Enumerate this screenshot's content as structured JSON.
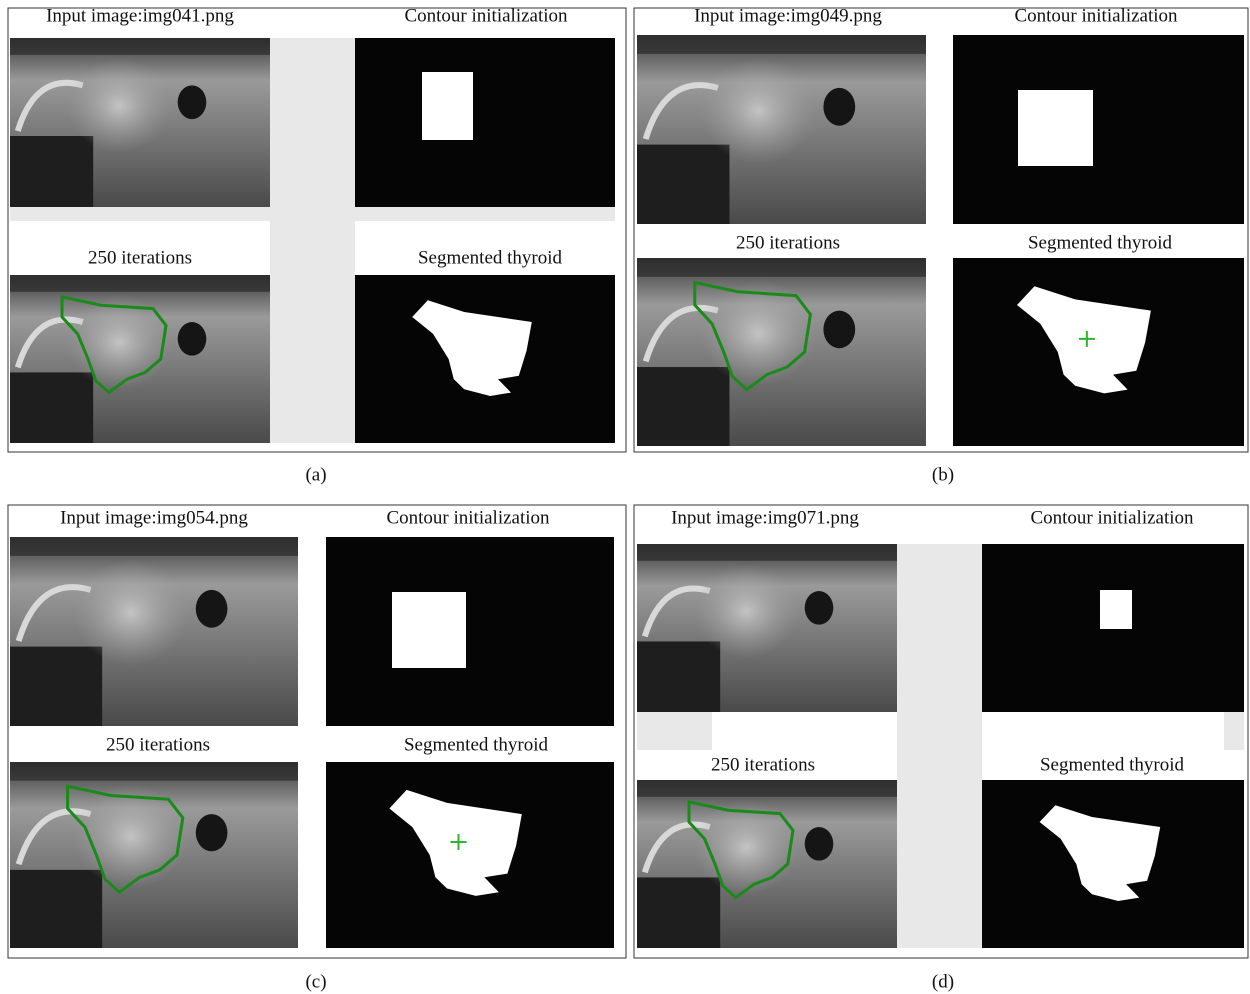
{
  "panels": [
    {
      "label": "(a)",
      "input_title": "Input image:img041.png",
      "init_title": "Contour initialization",
      "iter_title": "250 iterations",
      "seg_title": "Segmented thyroid"
    },
    {
      "label": "(b)",
      "input_title": "Input image:img049.png",
      "init_title": "Contour initialization",
      "iter_title": "250 iterations",
      "seg_title": "Segmented thyroid"
    },
    {
      "label": "(c)",
      "input_title": "Input image:img054.png",
      "init_title": "Contour initialization",
      "iter_title": "250 iterations",
      "seg_title": "Segmented thyroid"
    },
    {
      "label": "(d)",
      "input_title": "Input image:img071.png",
      "init_title": "Contour initialization",
      "iter_title": "250 iterations",
      "seg_title": "Segmented thyroid"
    }
  ]
}
